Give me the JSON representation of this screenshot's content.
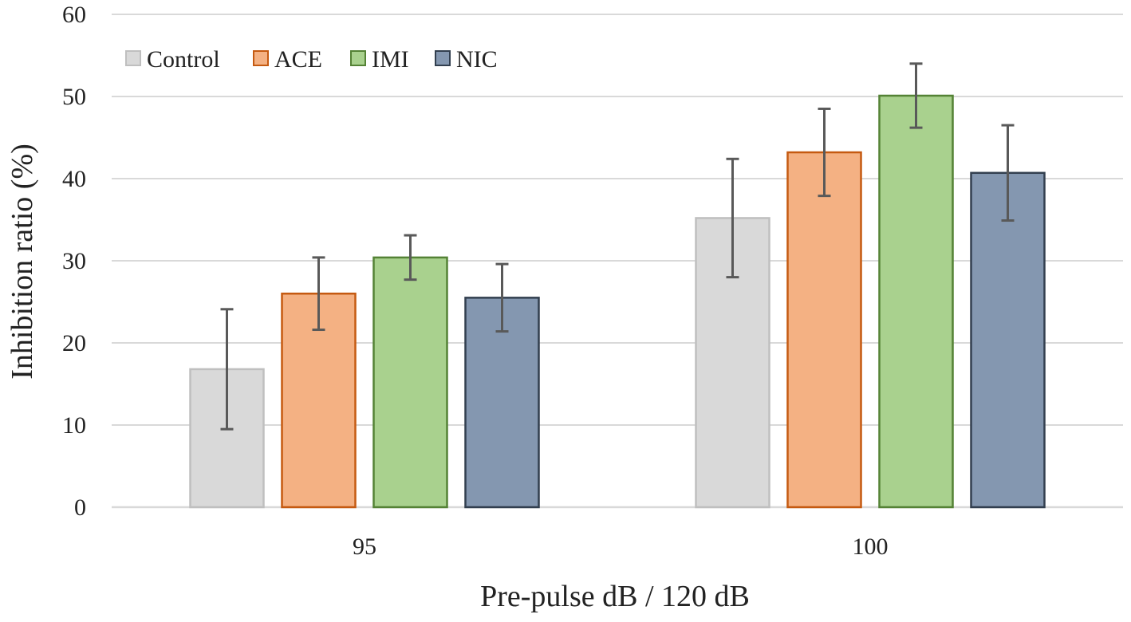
{
  "chart_data": {
    "type": "bar",
    "title": "",
    "xlabel": "Pre-pulse dB / 120  dB",
    "ylabel": "Inhibition ratio (%)",
    "ylim": [
      0,
      60
    ],
    "yticks": [
      0,
      10,
      20,
      30,
      40,
      50,
      60
    ],
    "ytick_labels": [
      "0",
      "10",
      "20",
      "30",
      "40",
      "50",
      "60"
    ],
    "grid": true,
    "legend_position": "top-left",
    "categories": [
      "95",
      "100"
    ],
    "series": [
      {
        "name": "Control",
        "fill": "#d9d9d9",
        "stroke": "#bfbfbf",
        "values": [
          16.8,
          35.2
        ],
        "errors": [
          7.3,
          7.2
        ]
      },
      {
        "name": "ACE",
        "fill": "#f4b183",
        "stroke": "#c55a11",
        "values": [
          26.0,
          43.2
        ],
        "errors": [
          4.4,
          5.3
        ]
      },
      {
        "name": "IMI",
        "fill": "#a9d18e",
        "stroke": "#548235",
        "values": [
          30.4,
          50.1
        ],
        "errors": [
          2.7,
          3.9
        ]
      },
      {
        "name": "NIC",
        "fill": "#8497b0",
        "stroke": "#323f4f",
        "values": [
          25.5,
          40.7
        ],
        "errors": [
          4.1,
          5.8
        ]
      }
    ]
  }
}
